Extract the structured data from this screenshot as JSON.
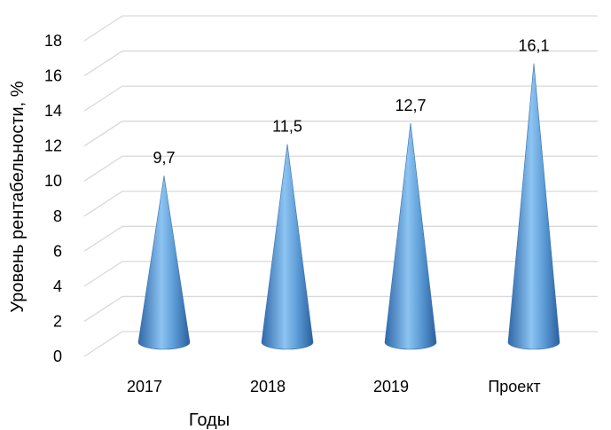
{
  "chart_data": {
    "type": "bar",
    "style": "3d-cone",
    "categories": [
      "2017",
      "2018",
      "2019",
      "Проект"
    ],
    "values": [
      9.7,
      11.5,
      12.7,
      16.1
    ],
    "data_labels": [
      "9,7",
      "11,5",
      "12,7",
      "16,1"
    ],
    "ylabel": "Уровень рентабельности, %",
    "xlabel": "Годы",
    "ylim": [
      0,
      18
    ],
    "yticks": [
      "0",
      "2",
      "4",
      "6",
      "8",
      "10",
      "12",
      "14",
      "16",
      "18"
    ],
    "grid": true,
    "legend": "none",
    "colors": {
      "cone_light": "#8cc4f2",
      "cone_mid": "#5b9bd5",
      "cone_dark": "#2a5f9e",
      "grid": "#d9d9d9"
    }
  }
}
